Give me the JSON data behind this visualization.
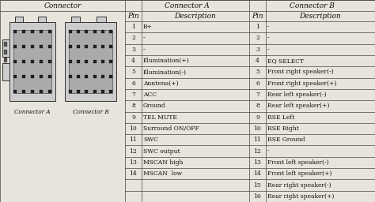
{
  "connector_header": "Connector",
  "connector_a_header": "Connector A",
  "connector_b_header": "Connector B",
  "connector_a_pins": [
    [
      1,
      "B+"
    ],
    [
      2,
      "-"
    ],
    [
      3,
      "-"
    ],
    [
      4,
      "Illumination(+)"
    ],
    [
      5,
      "Illumination(-)"
    ],
    [
      6,
      "Anntena(+)"
    ],
    [
      7,
      "ACC"
    ],
    [
      8,
      "Ground"
    ],
    [
      9,
      "TEL MUTE"
    ],
    [
      10,
      "Surround ON/OFF"
    ],
    [
      11,
      "SWC"
    ],
    [
      12,
      "SWC output"
    ],
    [
      13,
      "MSCAN high"
    ],
    [
      14,
      "MSCAN  low"
    ]
  ],
  "connector_b_pins": [
    [
      1,
      "-"
    ],
    [
      2,
      "-"
    ],
    [
      3,
      "-"
    ],
    [
      4,
      "EQ SELECT"
    ],
    [
      5,
      "Front right speaker(-)"
    ],
    [
      6,
      "Front right speaker(+)"
    ],
    [
      7,
      "Rear left speaker(-)"
    ],
    [
      8,
      "Rear left speaker(+)"
    ],
    [
      9,
      "RSE Left"
    ],
    [
      10,
      "RSE Right"
    ],
    [
      11,
      "RSE Ground"
    ],
    [
      12,
      "-"
    ],
    [
      13,
      "Front left speaker(-)"
    ],
    [
      14,
      "Front left speaker(+)"
    ],
    [
      15,
      "Rear right speaker(-)"
    ],
    [
      16,
      "Rear right speaker(+)"
    ]
  ],
  "bg_color": "#e8e4dc",
  "border_color": "#444444",
  "text_color": "#111111",
  "header_fontsize": 6.5,
  "data_fontsize": 5.5,
  "label_fontsize": 5.2
}
